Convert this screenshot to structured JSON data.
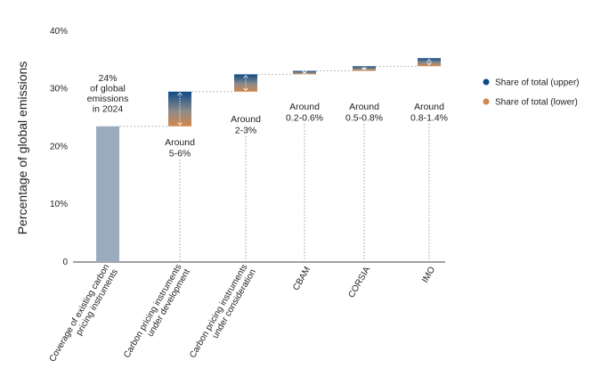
{
  "chart_data": {
    "type": "bar",
    "ylabel": "Percentage of global emissions",
    "ylim": [
      0,
      40
    ],
    "yticks": [
      "0",
      "10%",
      "20%",
      "30%",
      "40%"
    ],
    "categories": [
      [
        "Coverage of existing carbon",
        "pricing instruments"
      ],
      [
        "Carbon pricing instruments",
        "under development"
      ],
      [
        "Carbon pricing instruments",
        "under consideration"
      ],
      [
        "CBAM"
      ],
      [
        "CORSIA"
      ],
      [
        "IMO"
      ]
    ],
    "base_bar": {
      "value": 23.5,
      "annotation": [
        "24%",
        "of global",
        "emissions",
        "in 2024"
      ],
      "color": "#9aabbd"
    },
    "increments": [
      {
        "lower": 5,
        "upper": 6,
        "annotation": [
          "Around",
          "5-6%"
        ]
      },
      {
        "lower": 2,
        "upper": 3,
        "annotation": [
          "Around",
          "2-3%"
        ]
      },
      {
        "lower": 0.2,
        "upper": 0.6,
        "annotation": [
          "Around",
          "0.2-0.6%"
        ]
      },
      {
        "lower": 0.5,
        "upper": 0.8,
        "annotation": [
          "Around",
          "0.5-0.8%"
        ]
      },
      {
        "lower": 0.8,
        "upper": 1.4,
        "annotation": [
          "Around",
          "0.8-1.4%"
        ]
      }
    ],
    "series": [
      {
        "name": "Share of total (upper)",
        "color": "#0d4a87"
      },
      {
        "name": "Share of total (lower)",
        "color": "#d4874a"
      }
    ],
    "legend_position": "right"
  }
}
